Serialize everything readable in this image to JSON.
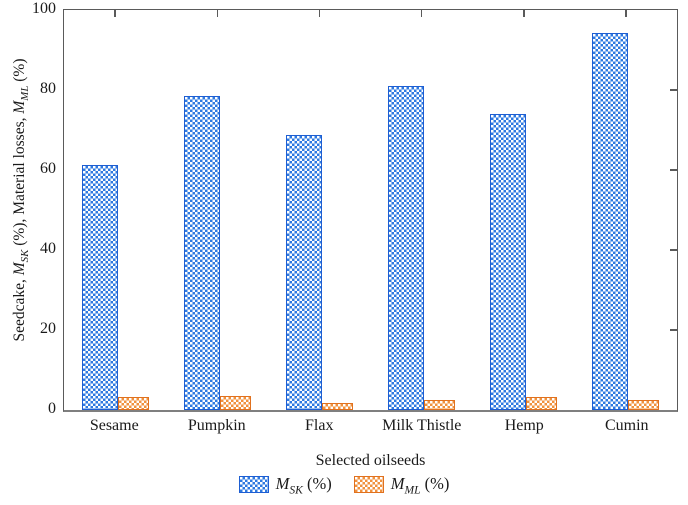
{
  "figure": {
    "background_color": "#ffffff",
    "frame_color": "#5a5a5a",
    "baseline_color": "#7f7f7f",
    "text_color": "#1a1a1a"
  },
  "chart_data": {
    "type": "bar",
    "title": "",
    "categories": [
      "Sesame",
      "Pumpkin",
      "Flax",
      "Milk Thistle",
      "Hemp",
      "Cumin"
    ],
    "series": [
      {
        "name": "M_SK (%)",
        "name_parts": [
          {
            "t": "M",
            "i": true
          },
          {
            "t": "SK",
            "i": true,
            "sub": true
          },
          {
            "t": " (%)"
          }
        ],
        "values": [
          61.2,
          78.5,
          68.8,
          81.0,
          74.0,
          94.2
        ],
        "fill_color": "#2e79e0",
        "border_color": "#1e5ed2",
        "pattern": "crosshatch"
      },
      {
        "name": "M_ML (%)",
        "name_parts": [
          {
            "t": "M",
            "i": true
          },
          {
            "t": "ML",
            "i": true,
            "sub": true
          },
          {
            "t": " (%)"
          }
        ],
        "values": [
          3.3,
          3.6,
          1.7,
          2.5,
          3.2,
          2.5
        ],
        "fill_color": "#f0923e",
        "border_color": "#e0711f",
        "pattern": "crosshatch"
      }
    ],
    "xlabel": "Selected oilseeds",
    "ylabel": "Seedcake, M_SK (%), Material losses, M_ML (%)",
    "ylabel_parts": [
      {
        "t": "Seedcake, "
      },
      {
        "t": "M",
        "i": true
      },
      {
        "t": "SK",
        "i": true,
        "sub": true
      },
      {
        "t": " (%), Material losses, "
      },
      {
        "t": "M",
        "i": true
      },
      {
        "t": "ML",
        "i": true,
        "sub": true
      },
      {
        "t": " (%)"
      }
    ],
    "ylim": [
      0,
      100
    ],
    "yticks": [
      0,
      20,
      40,
      60,
      80,
      100
    ],
    "right_axis_ticks": [
      20,
      40,
      60,
      80
    ],
    "top_axis_ticks": "category-centers",
    "grid": false,
    "legend_position": "bottom"
  }
}
